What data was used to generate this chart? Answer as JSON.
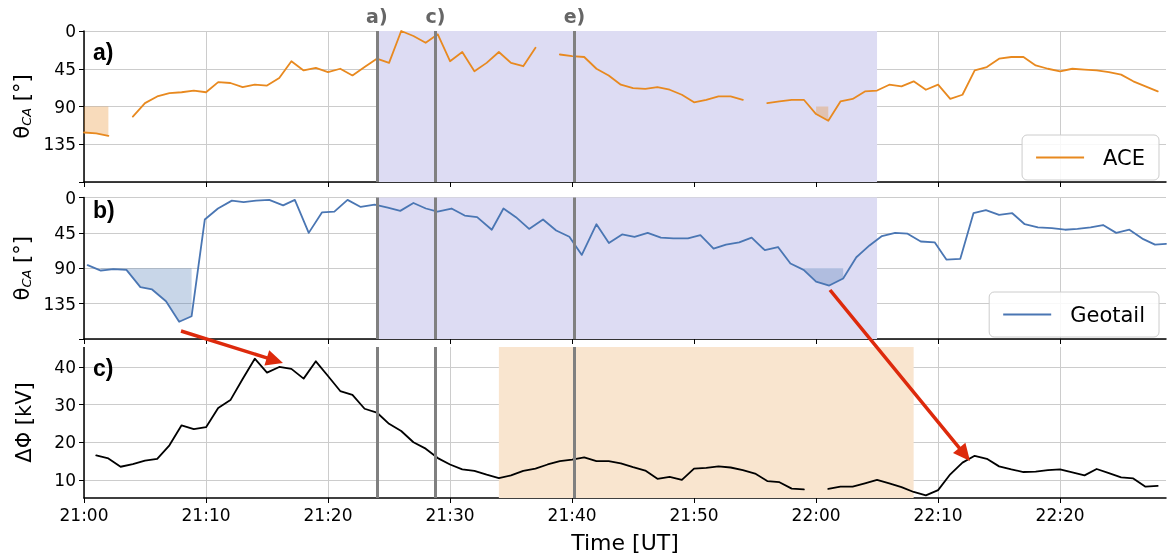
{
  "chart_data": [
    {
      "type": "line",
      "title": "a)",
      "ylabel": "θ$_{CA}$ [°]",
      "tick_labels": "y",
      "grid": true,
      "legend": "bottom right",
      "marker": "none",
      "line_style": "solid",
      "xlim": [
        21,
        22.478
      ],
      "xticks": [
        {
          "value": 21,
          "label": null
        },
        {
          "value": 21.1667,
          "label": null
        },
        {
          "value": 21.3333,
          "label": null
        },
        {
          "value": 21.5,
          "label": null
        },
        {
          "value": 21.6667,
          "label": null
        },
        {
          "value": 21.8333,
          "label": null
        },
        {
          "value": 22,
          "label": null
        },
        {
          "value": 22.1667,
          "label": null
        },
        {
          "value": 22.3333,
          "label": null
        }
      ],
      "ylim": [
        180,
        0
      ],
      "yticks": [
        0,
        45,
        90,
        135
      ],
      "x": [
        21,
        21.0167,
        21.0333,
        21.05,
        21.0667,
        21.0833,
        21.1,
        21.1167,
        21.1333,
        21.15,
        21.1667,
        21.1833,
        21.2,
        21.2167,
        21.2333,
        21.25,
        21.2667,
        21.2833,
        21.3,
        21.3167,
        21.3333,
        21.35,
        21.3667,
        21.3833,
        21.4,
        21.4167,
        21.4333,
        21.45,
        21.4667,
        21.4833,
        21.5,
        21.5167,
        21.5333,
        21.55,
        21.5667,
        21.5833,
        21.6,
        21.6167,
        21.6333,
        21.65,
        21.6667,
        21.6833,
        21.7,
        21.7167,
        21.7333,
        21.75,
        21.7667,
        21.7833,
        21.8,
        21.8167,
        21.8333,
        21.85,
        21.8667,
        21.8833,
        21.9,
        21.9167,
        21.9333,
        21.95,
        21.9667,
        21.9833,
        22,
        22.0167,
        22.0333,
        22.05,
        22.0667,
        22.0833,
        22.1,
        22.1167,
        22.1333,
        22.15,
        22.1667,
        22.1833,
        22.2,
        22.2167,
        22.2333,
        22.25,
        22.2667,
        22.2833,
        22.3,
        22.3167,
        22.3333,
        22.35,
        22.3667,
        22.3833,
        22.4,
        22.4167,
        22.4333,
        22.45,
        22.4667
      ],
      "series": [
        {
          "name": "ACE",
          "color": "#e8891f",
          "values": [
            121,
            122,
            125,
            null,
            102,
            86,
            78,
            74,
            73,
            71,
            73,
            61,
            62,
            67,
            64,
            65,
            56,
            36,
            47,
            44,
            49,
            45,
            53,
            43,
            33,
            38,
            0,
            6,
            14,
            4,
            36,
            25,
            48,
            38,
            25,
            38,
            42,
            20,
            null,
            28,
            30,
            31,
            45,
            53,
            64,
            68,
            69,
            67,
            70,
            76,
            85,
            82,
            78,
            78,
            82,
            null,
            86,
            84,
            82,
            82,
            99,
            107,
            84,
            81,
            72,
            71,
            64,
            66,
            60,
            70,
            64,
            81,
            76,
            47,
            43,
            33,
            31,
            31,
            41,
            45,
            48,
            45,
            46,
            47,
            49,
            52,
            60,
            66,
            72
          ],
          "lower": [
            90,
            90,
            90,
            null,
            null,
            null,
            null,
            null,
            null,
            null,
            null,
            null,
            null,
            null,
            null,
            null,
            null,
            null,
            null,
            null,
            null,
            null,
            null,
            null,
            null,
            null,
            null,
            null,
            null,
            null,
            null,
            null,
            null,
            null,
            null,
            null,
            null,
            null,
            null,
            null,
            null,
            null,
            null,
            null,
            null,
            null,
            null,
            null,
            null,
            null,
            null,
            null,
            null,
            null,
            null,
            null,
            null,
            null,
            null,
            null,
            90,
            90,
            null,
            null,
            null,
            null,
            null,
            null,
            null,
            null,
            null,
            null,
            null,
            null,
            null,
            null,
            null,
            null,
            null,
            null,
            null,
            null,
            null,
            null,
            null,
            null,
            null,
            null,
            null
          ],
          "upper": [
            121,
            122,
            125,
            null,
            null,
            null,
            null,
            null,
            null,
            null,
            null,
            null,
            null,
            null,
            null,
            null,
            null,
            null,
            null,
            null,
            null,
            null,
            null,
            null,
            null,
            null,
            null,
            null,
            null,
            null,
            null,
            null,
            null,
            null,
            null,
            null,
            null,
            null,
            null,
            null,
            null,
            null,
            null,
            null,
            null,
            null,
            null,
            null,
            null,
            null,
            null,
            null,
            null,
            null,
            null,
            null,
            null,
            null,
            null,
            null,
            99,
            107,
            null,
            null,
            null,
            null,
            null,
            null,
            null,
            null,
            null,
            null,
            null,
            null,
            null,
            null,
            null,
            null,
            null,
            null,
            null,
            null,
            null,
            null,
            null,
            null,
            null,
            null,
            null
          ]
        }
      ],
      "bands": [
        {
          "axis": "x",
          "from": 21.4,
          "to": 22.0833,
          "color": "#dddcf3"
        }
      ],
      "ref_lines": [
        {
          "axis": "x",
          "value": 21.4,
          "label": "a)",
          "color": "#808080"
        },
        {
          "axis": "x",
          "value": 21.4833,
          "label": "c)",
          "color": "#808080"
        },
        {
          "axis": "x",
          "value": 21.6667,
          "label": "e)",
          "color": "#808080"
        }
      ]
    },
    {
      "type": "line",
      "title": "b)",
      "ylabel": "θ$_{CA}$ [°]",
      "tick_labels": "y",
      "grid": true,
      "legend": "bottom right",
      "marker": "none",
      "line_style": "solid",
      "xlim": [
        21,
        22.478
      ],
      "xticks": [
        {
          "value": 21,
          "label": null
        },
        {
          "value": 21.1667,
          "label": null
        },
        {
          "value": 21.3333,
          "label": null
        },
        {
          "value": 21.5,
          "label": null
        },
        {
          "value": 21.6667,
          "label": null
        },
        {
          "value": 21.8333,
          "label": null
        },
        {
          "value": 22,
          "label": null
        },
        {
          "value": 22.1667,
          "label": null
        },
        {
          "value": 22.3333,
          "label": null
        }
      ],
      "ylim": [
        180,
        0
      ],
      "yticks": [
        0,
        45,
        90,
        135
      ],
      "x": [
        21.005,
        21.023,
        21.04,
        21.058,
        21.077,
        21.093,
        21.112,
        21.13,
        21.147,
        21.165,
        21.183,
        21.202,
        21.218,
        21.235,
        21.253,
        21.272,
        21.288,
        21.307,
        21.325,
        21.342,
        21.36,
        21.378,
        21.397,
        21.415,
        21.432,
        21.45,
        21.467,
        21.483,
        21.502,
        21.52,
        21.537,
        21.557,
        21.573,
        21.59,
        21.608,
        21.627,
        21.645,
        21.663,
        21.68,
        21.7,
        21.717,
        21.735,
        21.752,
        21.77,
        21.788,
        21.805,
        21.825,
        21.842,
        21.86,
        21.877,
        21.895,
        21.912,
        21.93,
        21.948,
        21.965,
        21.983,
        22,
        22.018,
        22.037,
        22.055,
        22.073,
        22.09,
        22.108,
        22.125,
        22.143,
        22.162,
        22.178,
        22.197,
        22.215,
        22.232,
        22.25,
        22.268,
        22.285,
        22.303,
        22.322,
        22.34,
        22.357,
        22.375,
        22.392,
        22.41,
        22.428,
        22.447,
        22.463,
        22.478
      ],
      "series": [
        {
          "name": "Geotail",
          "color": "#4a76b3",
          "values": [
            86,
            93,
            91,
            92,
            114,
            117,
            132,
            158,
            151,
            28,
            14,
            4,
            6,
            4,
            3,
            10,
            3,
            45,
            19,
            18,
            3,
            12,
            9,
            13,
            17,
            7,
            14,
            18,
            14,
            23,
            25,
            41,
            14,
            25,
            40,
            28,
            42,
            50,
            73,
            34,
            58,
            47,
            50,
            45,
            51,
            52,
            52,
            48,
            65,
            60,
            57,
            51,
            67,
            63,
            84,
            92,
            107,
            112,
            103,
            76,
            61,
            49,
            45,
            46,
            56,
            57,
            79,
            78,
            20,
            16,
            22,
            20,
            34,
            38,
            39,
            41,
            40,
            38,
            35,
            45,
            41,
            53,
            60,
            59
          ],
          "lower": [
            null,
            90,
            90,
            90,
            90,
            90,
            90,
            90,
            90,
            null,
            null,
            null,
            null,
            null,
            null,
            null,
            null,
            null,
            null,
            null,
            null,
            null,
            null,
            null,
            null,
            null,
            null,
            null,
            null,
            null,
            null,
            null,
            null,
            null,
            null,
            null,
            null,
            null,
            null,
            null,
            null,
            null,
            null,
            null,
            null,
            null,
            null,
            null,
            null,
            null,
            null,
            null,
            null,
            null,
            null,
            90,
            90,
            90,
            90,
            null,
            null,
            null,
            null,
            null,
            null,
            null,
            null,
            null,
            null,
            null,
            null,
            null,
            null,
            null,
            null,
            null,
            null,
            null,
            null,
            null,
            null,
            null,
            null,
            null
          ],
          "upper": [
            null,
            93,
            91,
            92,
            114,
            117,
            132,
            158,
            151,
            null,
            null,
            null,
            null,
            null,
            null,
            null,
            null,
            null,
            null,
            null,
            null,
            null,
            null,
            null,
            null,
            null,
            null,
            null,
            null,
            null,
            null,
            null,
            null,
            null,
            null,
            null,
            null,
            null,
            null,
            null,
            null,
            null,
            null,
            null,
            null,
            null,
            null,
            null,
            null,
            null,
            null,
            null,
            null,
            null,
            null,
            92,
            107,
            112,
            103,
            null,
            null,
            null,
            null,
            null,
            null,
            null,
            null,
            null,
            null,
            null,
            null,
            null,
            null,
            null,
            null,
            null,
            null,
            null,
            null,
            null,
            null,
            null,
            null,
            null
          ]
        }
      ],
      "bands": [
        {
          "axis": "x",
          "from": 21.4,
          "to": 22.0833,
          "color": "#dddcf3"
        }
      ],
      "ref_lines": [
        {
          "axis": "x",
          "value": 21.4,
          "color": "#808080"
        },
        {
          "axis": "x",
          "value": 21.4833,
          "color": "#808080"
        },
        {
          "axis": "x",
          "value": 21.6667,
          "color": "#808080"
        }
      ]
    },
    {
      "type": "line",
      "title": "c)",
      "ylabel": "ΔΦ [kV]",
      "xlabel": "Time [UT]",
      "grid": true,
      "marker": "none",
      "line_style": "solid",
      "xlim": [
        21,
        22.478
      ],
      "xticks": [
        {
          "value": 21,
          "label": "21:00"
        },
        {
          "value": 21.1667,
          "label": "21:10"
        },
        {
          "value": 21.3333,
          "label": "21:20"
        },
        {
          "value": 21.5,
          "label": "21:30"
        },
        {
          "value": 21.6667,
          "label": "21:40"
        },
        {
          "value": 21.8333,
          "label": "21:50"
        },
        {
          "value": 22,
          "label": "22:00"
        },
        {
          "value": 22.1667,
          "label": "22:10"
        },
        {
          "value": 22.3333,
          "label": "22:20"
        }
      ],
      "ylim": [
        5.2,
        45.3
      ],
      "yticks": [
        10,
        20,
        30,
        40
      ],
      "x": [
        21.0167,
        21.0333,
        21.05,
        21.0667,
        21.0833,
        21.1,
        21.1167,
        21.1333,
        21.15,
        21.1667,
        21.1833,
        21.2,
        21.2167,
        21.2333,
        21.25,
        21.2667,
        21.2833,
        21.3,
        21.3167,
        21.3333,
        21.35,
        21.3667,
        21.3833,
        21.4,
        21.4167,
        21.4333,
        21.45,
        21.4667,
        21.4833,
        21.5,
        21.5167,
        21.5333,
        21.55,
        21.5667,
        21.5833,
        21.6,
        21.6167,
        21.6333,
        21.65,
        21.6667,
        21.6833,
        21.7,
        21.7167,
        21.7333,
        21.75,
        21.7667,
        21.7833,
        21.8,
        21.8167,
        21.8333,
        21.85,
        21.8667,
        21.8833,
        21.9,
        21.9167,
        21.9333,
        21.95,
        21.9667,
        21.9833,
        22,
        22.0167,
        22.0333,
        22.05,
        22.0667,
        22.0833,
        22.1,
        22.1167,
        22.1333,
        22.15,
        22.1667,
        22.1833,
        22.2,
        22.2167,
        22.2333,
        22.25,
        22.2667,
        22.2833,
        22.3,
        22.3167,
        22.3333,
        22.35,
        22.3667,
        22.3833,
        22.4,
        22.4167,
        22.4333,
        22.45,
        22.4667
      ],
      "series": [
        {
          "color": "#000000",
          "values": [
            16.5,
            15.7,
            13.5,
            14.2,
            15.1,
            15.6,
            19.2,
            24.5,
            23.5,
            24.0,
            29.1,
            31.2,
            36.8,
            42.2,
            38.5,
            40.0,
            39.5,
            36.9,
            41.5,
            37.6,
            33.6,
            32.6,
            28.9,
            27.9,
            24.9,
            23.0,
            20.0,
            18.3,
            15.8,
            14.1,
            12.8,
            12.4,
            11.4,
            10.5,
            11.2,
            12.4,
            13.0,
            14.1,
            15.0,
            15.4,
            16.0,
            15.0,
            15.0,
            14.4,
            13.4,
            12.5,
            10.3,
            10.8,
            10.0,
            13.0,
            13.2,
            13.6,
            13.3,
            12.6,
            11.7,
            9.7,
            9.4,
            7.7,
            7.5,
            null,
            7.6,
            8.2,
            8.2,
            9.1,
            10.0,
            9.1,
            8.1,
            6.8,
            5.9,
            7.3,
            11.5,
            14.6,
            16.4,
            15.6,
            13.6,
            12.8,
            12.1,
            12.2,
            12.6,
            12.8,
            12.0,
            11.2,
            12.9,
            11.8,
            10.7,
            10.4,
            8.2,
            8.4
          ]
        }
      ],
      "bands": [
        {
          "axis": "x",
          "from": 21.5667,
          "to": 22.1333,
          "color": "#f9e5cf"
        }
      ],
      "ref_lines": [
        {
          "axis": "x",
          "value": 21.4,
          "color": "#808080"
        },
        {
          "axis": "x",
          "value": 21.4833,
          "color": "#808080"
        },
        {
          "axis": "x",
          "value": 21.6667,
          "color": "#808080"
        }
      ]
    }
  ]
}
